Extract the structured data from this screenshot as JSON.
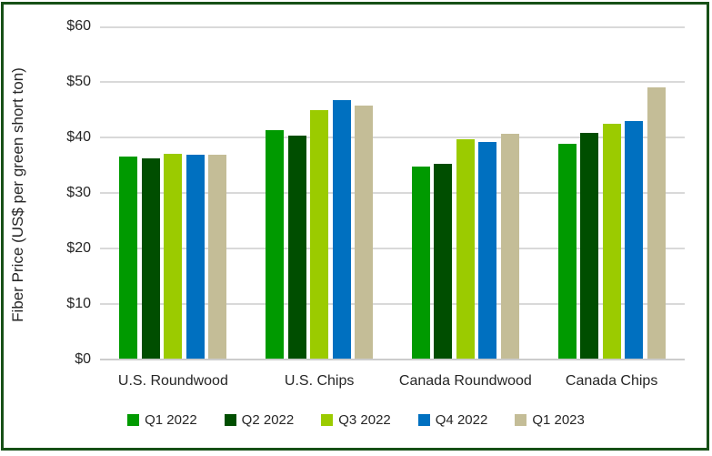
{
  "chart_data": {
    "type": "bar",
    "title": "",
    "xlabel": "",
    "ylabel": "Fiber Price (US$ per green short ton)",
    "categories": [
      "U.S. Roundwood",
      "U.S. Chips",
      "Canada Roundwood",
      "Canada Chips"
    ],
    "series": [
      {
        "name": "Q1 2022",
        "color": "#009A00",
        "values": [
          36.5,
          41.3,
          34.8,
          38.8
        ]
      },
      {
        "name": "Q2 2022",
        "color": "#004E00",
        "values": [
          36.2,
          40.3,
          35.2,
          40.9
        ]
      },
      {
        "name": "Q3 2022",
        "color": "#9BCB00",
        "values": [
          37.0,
          45.0,
          39.7,
          42.4
        ]
      },
      {
        "name": "Q4 2022",
        "color": "#0070C0",
        "values": [
          36.9,
          46.7,
          39.2,
          43.0
        ]
      },
      {
        "name": "Q1 2023",
        "color": "#C4BD97",
        "values": [
          36.9,
          45.7,
          40.6,
          49.1
        ]
      }
    ],
    "ylim": [
      0,
      60
    ],
    "ytick_step": 10,
    "yticks": [
      {
        "value": 0,
        "label": "$0"
      },
      {
        "value": 10,
        "label": "$10"
      },
      {
        "value": 20,
        "label": "$20"
      },
      {
        "value": 30,
        "label": "$30"
      },
      {
        "value": 40,
        "label": "$40"
      },
      {
        "value": 50,
        "label": "$50"
      },
      {
        "value": 60,
        "label": "$60"
      }
    ],
    "grid": true,
    "legend_position": "bottom",
    "colors": {
      "frame_border": "#175017",
      "gridline": "#D9D9D9",
      "axis_line": "#CCCCCC",
      "text": "#262626",
      "background": "#FFFFFF"
    }
  }
}
